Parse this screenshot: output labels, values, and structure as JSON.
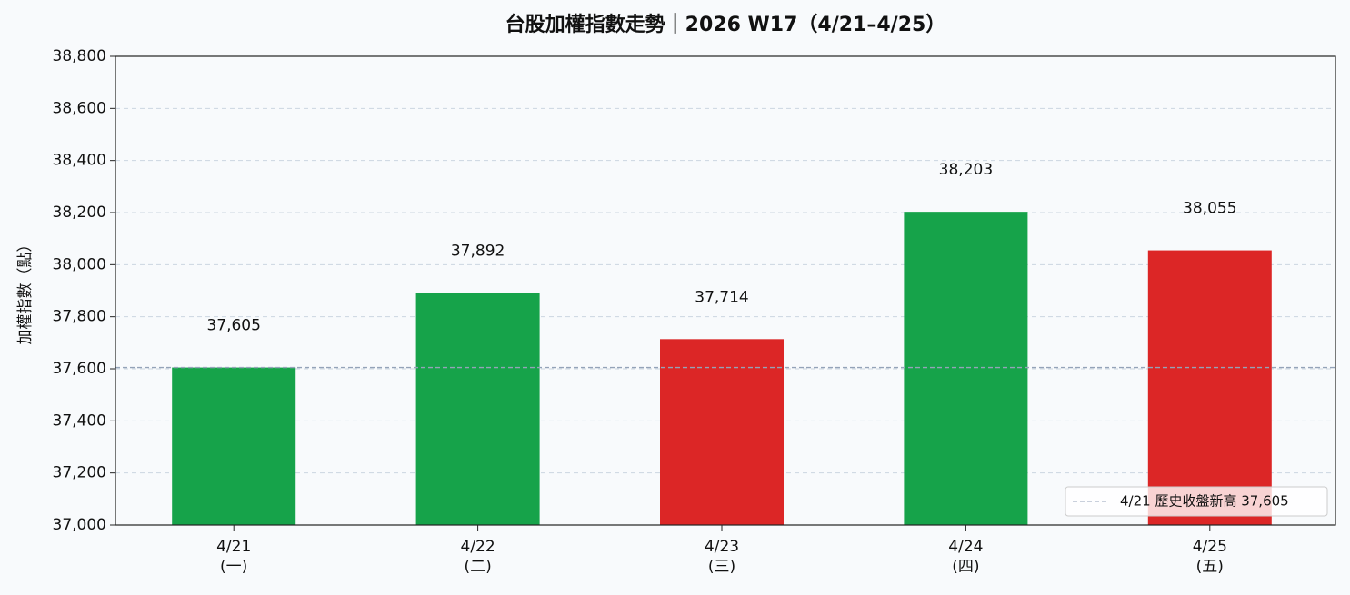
{
  "chart_data": {
    "type": "bar",
    "title": "台股加權指數走勢｜2026 W17（4/21–4/25）",
    "y_label": "加權指數（點）",
    "categories": [
      "4/21\n(一)",
      "4/22\n(二)",
      "4/23\n(三)",
      "4/24\n(四)",
      "4/25\n(五)"
    ],
    "values": [
      37605,
      37892,
      37714,
      38203,
      38055
    ],
    "value_labels": [
      "37,605",
      "37,892",
      "37,714",
      "38,203",
      "38,055"
    ],
    "colors": [
      "#16a34a",
      "#16a34a",
      "#dc2626",
      "#16a34a",
      "#dc2626"
    ],
    "ylim": [
      37000,
      38800
    ],
    "yticks": [
      {
        "value": 37000,
        "label": "37,000"
      },
      {
        "value": 37200,
        "label": "37,200"
      },
      {
        "value": 37400,
        "label": "37,400"
      },
      {
        "value": 37600,
        "label": "37,600"
      },
      {
        "value": 37800,
        "label": "37,800"
      },
      {
        "value": 38000,
        "label": "38,000"
      },
      {
        "value": 38200,
        "label": "38,200"
      },
      {
        "value": 38400,
        "label": "38,400"
      },
      {
        "value": 38600,
        "label": "38,600"
      },
      {
        "value": 38800,
        "label": "38,800"
      }
    ],
    "grid": true,
    "reference_line": {
      "value": 37605,
      "label": "4/21 歷史收盤新高 37,605",
      "color": "#94a3b8"
    },
    "legend_position": "lower right"
  }
}
